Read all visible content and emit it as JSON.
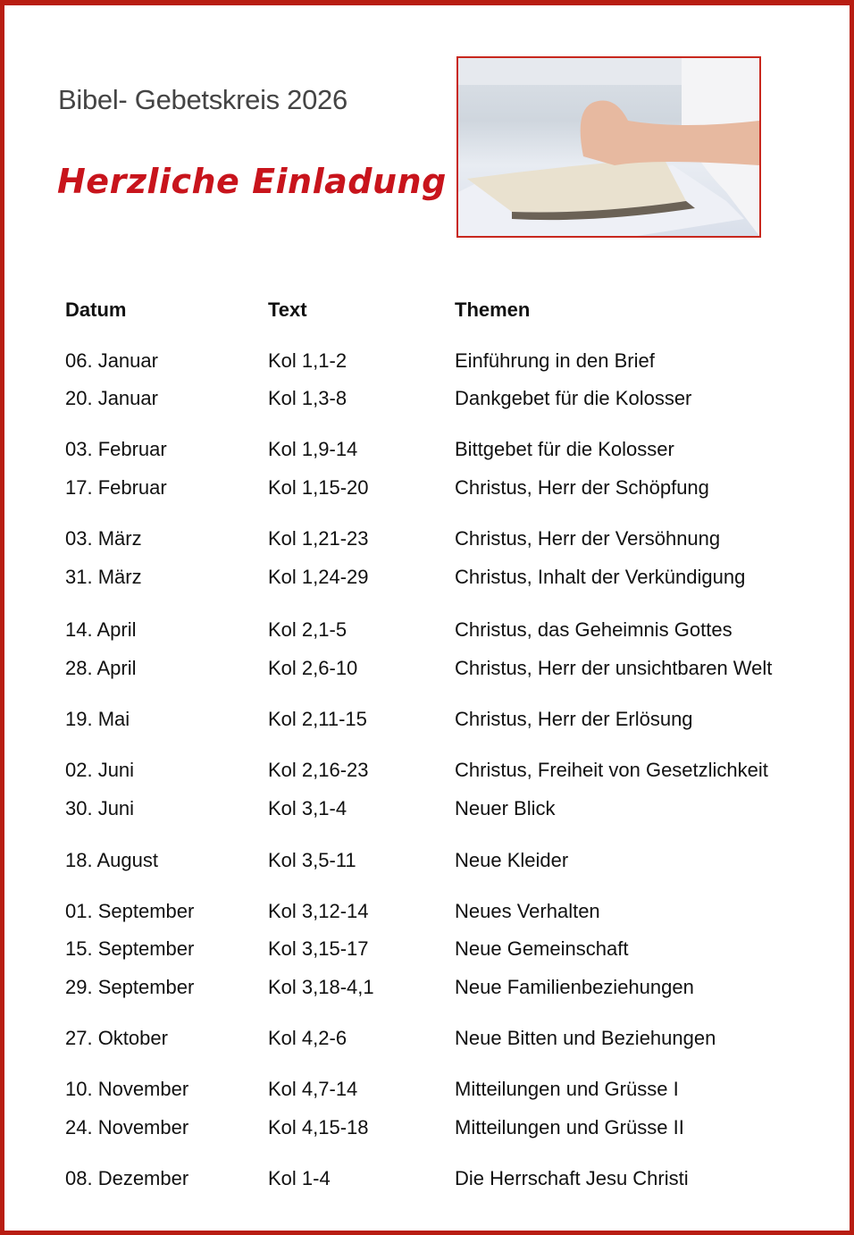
{
  "header": {
    "title": "Bibel- Gebetskreis 2026",
    "invitation": "Herzliche Einladung",
    "image_description_icon": "praying-hands-bible-photo"
  },
  "colors": {
    "border": "#b81d12",
    "invitation": "#c8141c"
  },
  "table": {
    "columns": [
      "Datum",
      "Text",
      "Themen"
    ],
    "rows": [
      [
        "06. Januar",
        "Kol 1,1-2",
        "Einführung in den Brief"
      ],
      [
        "20. Januar",
        "Kol 1,3-8",
        "Dankgebet für die Kolosser"
      ],
      [
        "03. Februar",
        "Kol 1,9-14",
        "Bittgebet für die Kolosser"
      ],
      [
        "17. Februar",
        "Kol 1,15-20",
        "Christus, Herr der Schöpfung"
      ],
      [
        "03. März",
        "Kol 1,21-23",
        "Christus, Herr der Versöhnung"
      ],
      [
        "31. März",
        "Kol 1,24-29",
        "Christus, Inhalt der Verkündigung"
      ],
      [
        "14. April",
        "Kol 2,1-5",
        "Christus, das Geheimnis Gottes"
      ],
      [
        "28. April",
        "Kol 2,6-10",
        "Christus, Herr der unsichtbaren Welt"
      ],
      [
        "19. Mai",
        "Kol 2,11-15",
        "Christus, Herr der Erlösung"
      ],
      [
        "02. Juni",
        "Kol 2,16-23",
        "Christus, Freiheit von Gesetzlichkeit"
      ],
      [
        "30. Juni",
        "Kol 3,1-4",
        "Neuer Blick"
      ],
      [
        "18. August",
        "Kol 3,5-11",
        "Neue Kleider"
      ],
      [
        "01. September",
        "Kol 3,12-14",
        "Neues Verhalten"
      ],
      [
        "15. September",
        "Kol 3,15-17",
        "Neue Gemeinschaft"
      ],
      [
        "29. September",
        "Kol 3,18-4,1",
        "Neue Familienbeziehungen"
      ],
      [
        "27. Oktober",
        "Kol 4,2-6",
        "Neue Bitten und Beziehungen"
      ],
      [
        "10. November",
        "Kol 4,7-14",
        "Mitteilungen und Grüsse I"
      ],
      [
        "24. November",
        "Kol 4,15-18",
        "Mitteilungen und Grüsse II"
      ],
      [
        "08. Dezember",
        "Kol 1-4",
        "Die Herrschaft Jesu Christi"
      ]
    ]
  }
}
